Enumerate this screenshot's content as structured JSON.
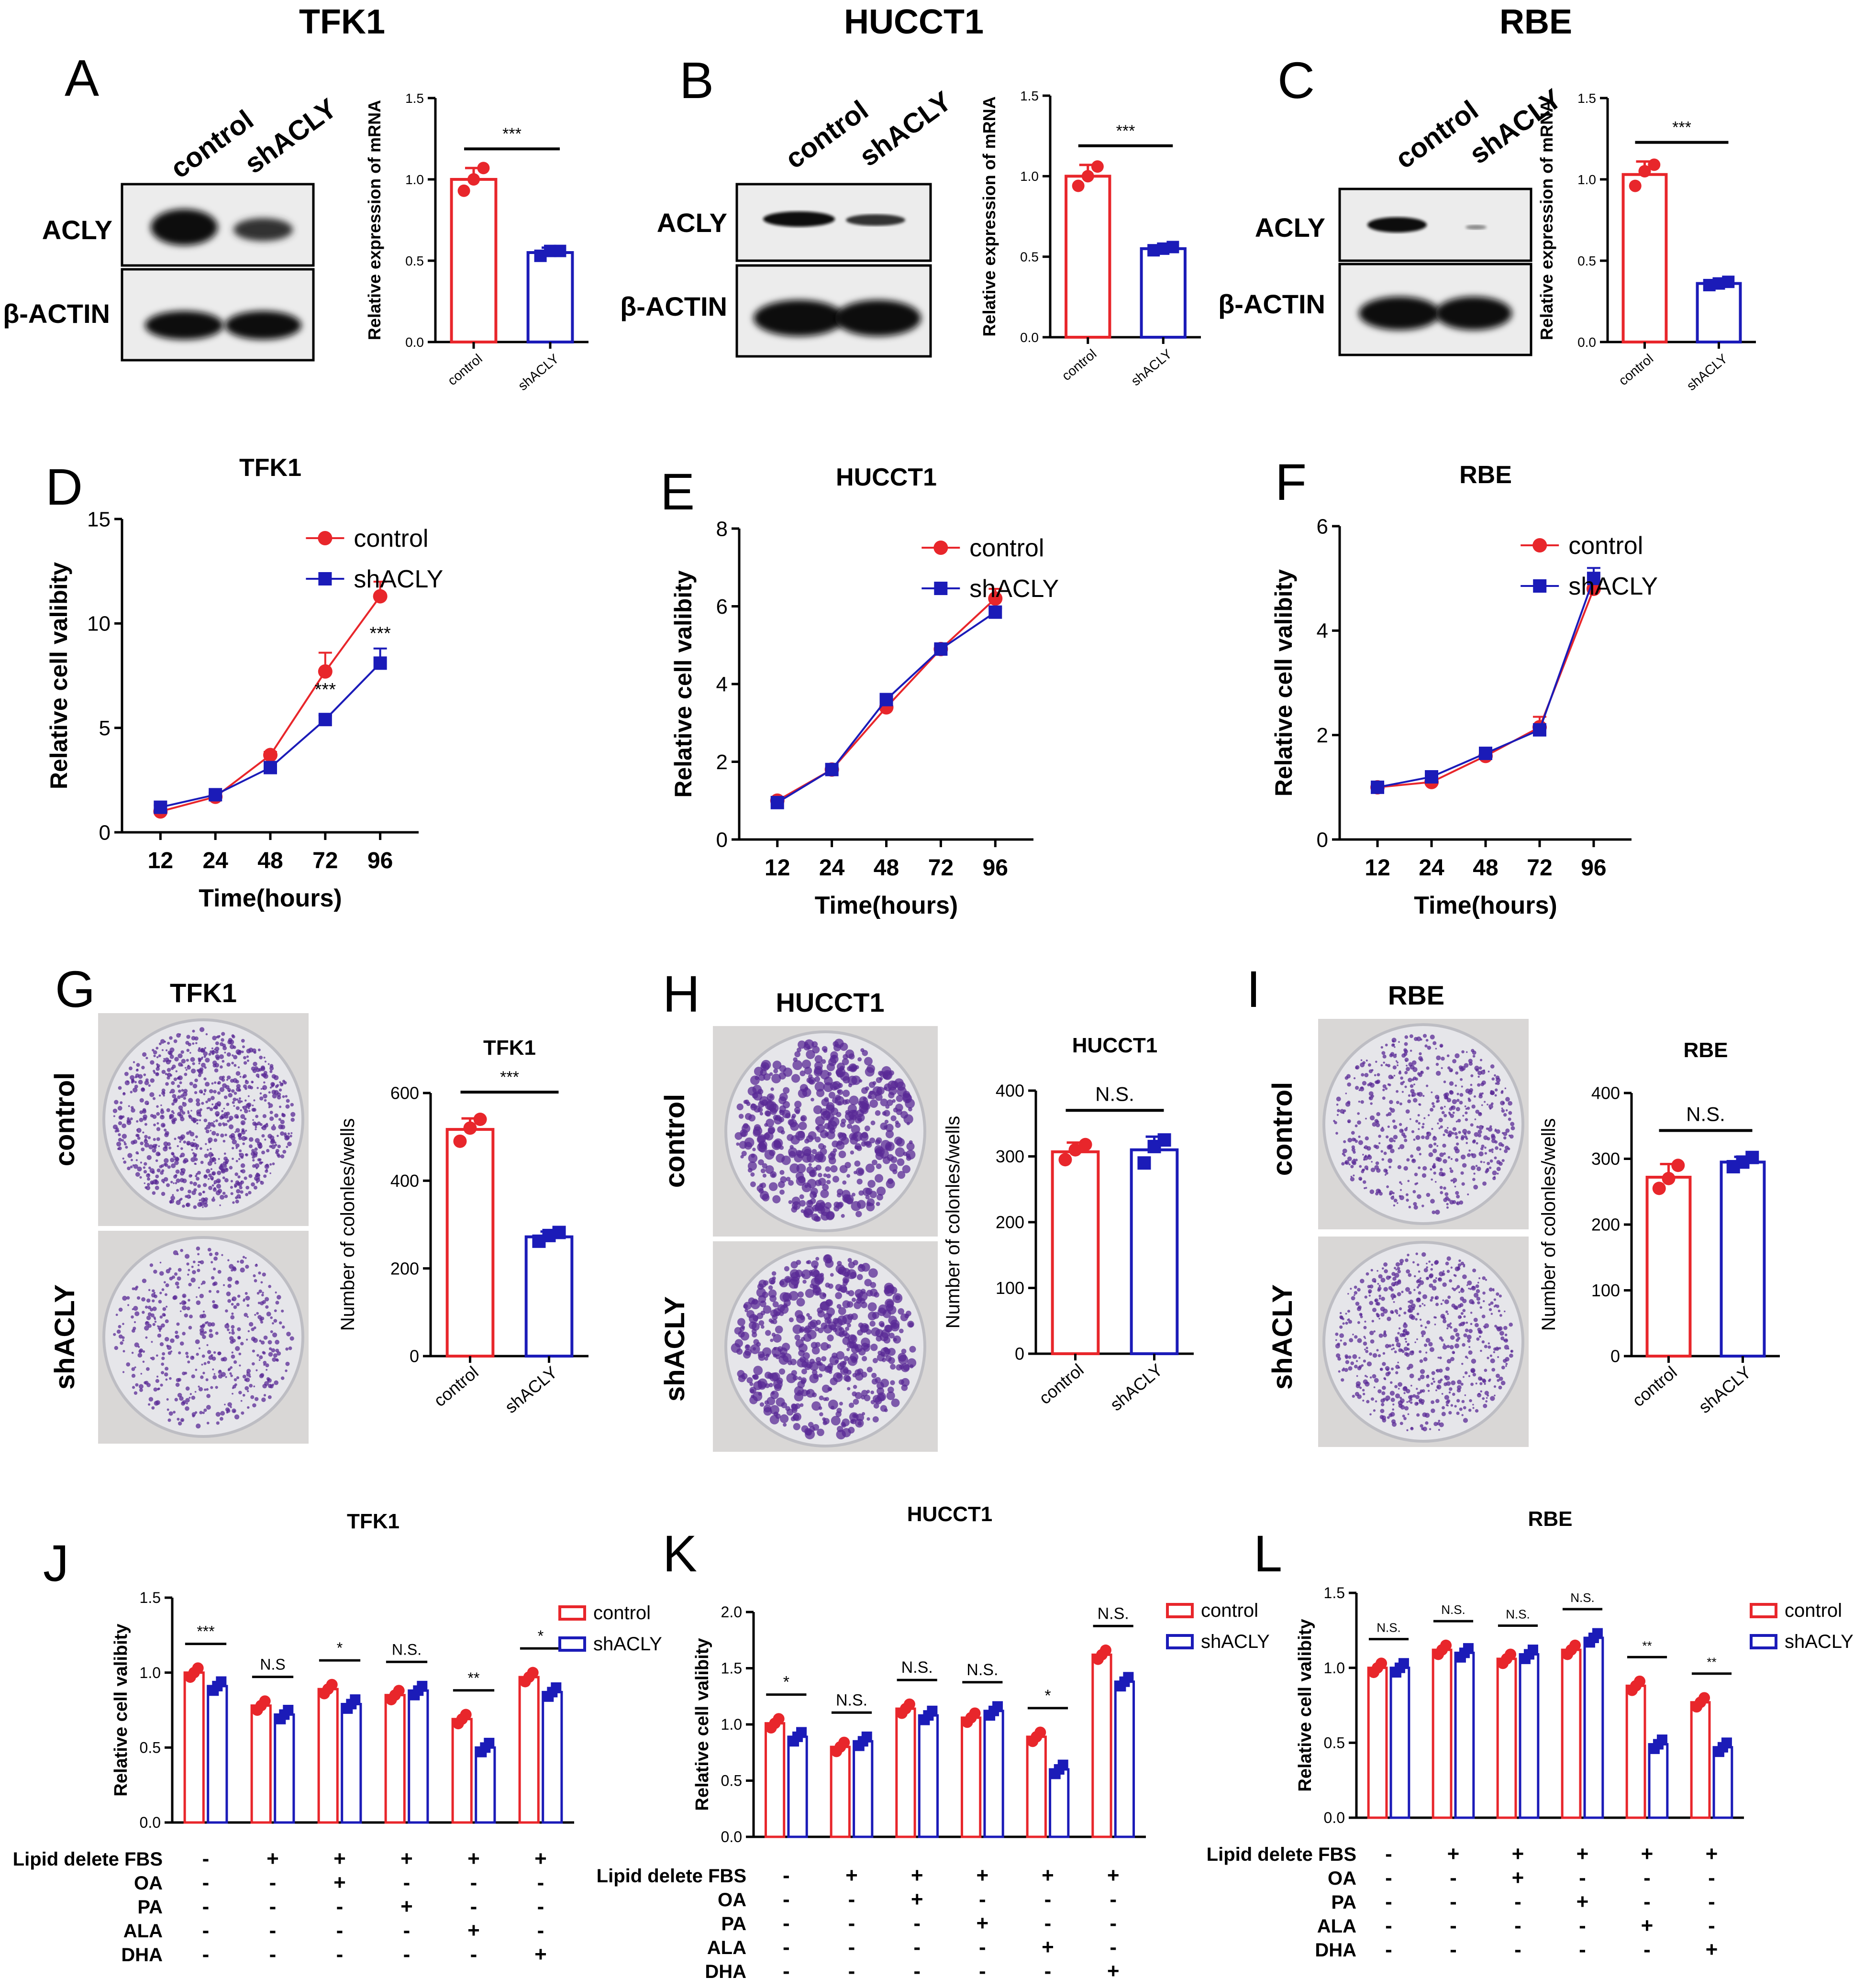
{
  "colors": {
    "control": "#e8262b",
    "shACLY": "#1b1bb8",
    "gel_bg": "#ececec",
    "plate_bg": "#e6e6ea",
    "colony": "#5a2a96"
  },
  "cell_lines": {
    "a": "TFK1",
    "b": "HUCCT1",
    "c": "RBE"
  },
  "panels": {
    "A": "A",
    "B": "B",
    "C": "C",
    "D": "D",
    "E": "E",
    "F": "F",
    "G": "G",
    "H": "H",
    "I": "I",
    "J": "J",
    "K": "K",
    "L": "L"
  },
  "western": {
    "lane_labels": [
      "control",
      "shACLY"
    ],
    "band_labels": [
      "ACLY",
      "β-ACTIN"
    ]
  },
  "colony_photos": {
    "row_labels": [
      "control",
      "shACLY"
    ]
  },
  "treatments": {
    "row_labels": [
      "Lipid delete FBS",
      "OA",
      "PA",
      "ALA",
      "DHA"
    ],
    "rows": [
      [
        "-",
        "+",
        "+",
        "+",
        "+",
        "+"
      ],
      [
        "-",
        "-",
        "+",
        "-",
        "-",
        "-"
      ],
      [
        "-",
        "-",
        "-",
        "+",
        "-",
        "-"
      ],
      [
        "-",
        "-",
        "-",
        "-",
        "+",
        "-"
      ],
      [
        "-",
        "-",
        "-",
        "-",
        "-",
        "+"
      ]
    ]
  },
  "chart_data": [
    {
      "id": "A_bar",
      "type": "bar",
      "title": "",
      "ylabel": "Relative expression of mRNA",
      "categories": [
        "control",
        "shACLY"
      ],
      "values": [
        1.0,
        0.55
      ],
      "errors": [
        0.07,
        0.03
      ],
      "ylim": [
        0,
        1.5
      ],
      "yticks": [
        "0.0",
        "0.5",
        "1.0",
        "1.5"
      ],
      "significance": [
        "***"
      ],
      "points": [
        [
          0.93,
          1.0,
          1.07
        ],
        [
          0.53,
          0.56,
          0.56
        ]
      ]
    },
    {
      "id": "B_bar",
      "type": "bar",
      "title": "",
      "ylabel": "Relative expression of mRNA",
      "categories": [
        "control",
        "shACLY"
      ],
      "values": [
        1.0,
        0.55
      ],
      "errors": [
        0.07,
        0.02
      ],
      "ylim": [
        0,
        1.5
      ],
      "yticks": [
        "0.0",
        "0.5",
        "1.0",
        "1.5"
      ],
      "significance": [
        "***"
      ],
      "points": [
        [
          0.94,
          1.0,
          1.06
        ],
        [
          0.54,
          0.55,
          0.56
        ]
      ]
    },
    {
      "id": "C_bar",
      "type": "bar",
      "title": "",
      "ylabel": "Relative expression of mRNA",
      "categories": [
        "control",
        "shACLY"
      ],
      "values": [
        1.03,
        0.36
      ],
      "errors": [
        0.08,
        0.01
      ],
      "ylim": [
        0,
        1.5
      ],
      "yticks": [
        "0.0",
        "0.5",
        "1.0",
        "1.5"
      ],
      "significance": [
        "***"
      ],
      "points": [
        [
          0.96,
          1.05,
          1.09
        ],
        [
          0.35,
          0.36,
          0.37
        ]
      ]
    },
    {
      "id": "D_line",
      "type": "line",
      "title": "TFK1",
      "xlabel": "Time(hours)",
      "ylabel": "Relative cell valibity",
      "categories": [
        "12",
        "24",
        "48",
        "72",
        "96"
      ],
      "ylim": [
        0,
        15
      ],
      "yticks": [
        "0",
        "5",
        "10",
        "15"
      ],
      "series": [
        {
          "name": "control",
          "values": [
            1.0,
            1.7,
            3.7,
            7.7,
            11.3
          ],
          "errors": [
            0.1,
            0.1,
            0.15,
            0.9,
            0.7
          ]
        },
        {
          "name": "shACLY",
          "values": [
            1.2,
            1.8,
            3.1,
            5.4,
            8.1
          ],
          "errors": [
            0.1,
            0.1,
            0.15,
            0.2,
            0.7
          ]
        }
      ],
      "annotations": [
        {
          "x": "72",
          "text": "***"
        },
        {
          "x": "96",
          "text": "***"
        }
      ]
    },
    {
      "id": "E_line",
      "type": "line",
      "title": "HUCCT1",
      "xlabel": "Time(hours)",
      "ylabel": "Relative cell valibity",
      "categories": [
        "12",
        "24",
        "48",
        "72",
        "96"
      ],
      "ylim": [
        0,
        8
      ],
      "yticks": [
        "0",
        "2",
        "4",
        "6",
        "8"
      ],
      "series": [
        {
          "name": "control",
          "values": [
            1.0,
            1.8,
            3.4,
            4.9,
            6.2
          ],
          "errors": [
            0.05,
            0.05,
            0.1,
            0.1,
            0.25
          ]
        },
        {
          "name": "shACLY",
          "values": [
            0.95,
            1.8,
            3.6,
            4.9,
            5.85
          ],
          "errors": [
            0.05,
            0.05,
            0.1,
            0.1,
            0.1
          ]
        }
      ],
      "annotations": []
    },
    {
      "id": "F_line",
      "type": "line",
      "title": "RBE",
      "xlabel": "Time(hours)",
      "ylabel": "Relative cell valibity",
      "categories": [
        "12",
        "24",
        "48",
        "72",
        "96"
      ],
      "ylim": [
        0,
        6
      ],
      "yticks": [
        "0",
        "2",
        "4",
        "6"
      ],
      "series": [
        {
          "name": "control",
          "values": [
            1.0,
            1.1,
            1.6,
            2.15,
            4.8
          ],
          "errors": [
            0.05,
            0.05,
            0.05,
            0.2,
            0.15
          ]
        },
        {
          "name": "shACLY",
          "values": [
            1.0,
            1.2,
            1.65,
            2.1,
            5.0
          ],
          "errors": [
            0.05,
            0.05,
            0.05,
            0.1,
            0.2
          ]
        }
      ],
      "annotations": []
    },
    {
      "id": "G_bar",
      "type": "bar",
      "title": "TFK1",
      "ylabel": "Number of colonles/wells",
      "categories": [
        "control",
        "shACLY"
      ],
      "values": [
        517,
        272
      ],
      "errors": [
        25,
        12
      ],
      "ylim": [
        0,
        600
      ],
      "yticks": [
        "0",
        "200",
        "400",
        "600"
      ],
      "significance": [
        "***"
      ],
      "points": [
        [
          490,
          520,
          540
        ],
        [
          262,
          275,
          282
        ]
      ]
    },
    {
      "id": "H_bar",
      "type": "bar",
      "title": "HUCCT1",
      "ylabel": "Number of colonles/wells",
      "categories": [
        "control",
        "shACLY"
      ],
      "values": [
        307,
        310
      ],
      "errors": [
        14,
        20
      ],
      "ylim": [
        0,
        400
      ],
      "yticks": [
        "0",
        "100",
        "200",
        "300",
        "400"
      ],
      "significance": [
        "N.S."
      ],
      "points": [
        [
          295,
          310,
          318
        ],
        [
          290,
          315,
          325
        ]
      ]
    },
    {
      "id": "I_bar",
      "type": "bar",
      "title": "RBE",
      "ylabel": "Number of colonles/wells",
      "categories": [
        "control",
        "shACLY"
      ],
      "values": [
        272,
        295
      ],
      "errors": [
        20,
        8
      ],
      "ylim": [
        0,
        400
      ],
      "yticks": [
        "0",
        "100",
        "200",
        "300",
        "400"
      ],
      "significance": [
        "N.S."
      ],
      "points": [
        [
          255,
          270,
          290
        ],
        [
          288,
          295,
          302
        ]
      ]
    },
    {
      "id": "J_grouped",
      "type": "bar",
      "title": "TFK1",
      "ylabel": "Relative cell valibity",
      "ylim": [
        0,
        1.5
      ],
      "yticks": [
        "0.0",
        "0.5",
        "1.0",
        "1.5"
      ],
      "legend": [
        "control",
        "shACLY"
      ],
      "series": [
        {
          "name": "control",
          "values": [
            1.0,
            0.78,
            0.89,
            0.85,
            0.69,
            0.97
          ]
        },
        {
          "name": "shACLY",
          "values": [
            0.91,
            0.72,
            0.79,
            0.88,
            0.5,
            0.87
          ]
        }
      ],
      "significance": [
        "***",
        "N.S",
        "*",
        "N.S.",
        "**",
        "*"
      ]
    },
    {
      "id": "K_grouped",
      "type": "bar",
      "title": "HUCCT1",
      "ylabel": "Relative cell valibity",
      "ylim": [
        0,
        2.0
      ],
      "yticks": [
        "0.0",
        "0.5",
        "1.0",
        "1.5",
        "2.0"
      ],
      "legend": [
        "control",
        "shACLY"
      ],
      "series": [
        {
          "name": "control",
          "values": [
            1.01,
            0.8,
            1.14,
            1.06,
            0.89,
            1.62
          ]
        },
        {
          "name": "shACLY",
          "values": [
            0.89,
            0.85,
            1.08,
            1.12,
            0.6,
            1.38
          ]
        }
      ],
      "significance": [
        "*",
        "N.S.",
        "N.S.",
        "N.S.",
        "*",
        "N.S."
      ]
    },
    {
      "id": "L_grouped",
      "type": "bar",
      "title": "RBE",
      "ylabel": "Relative cell valibity",
      "ylim": [
        0,
        1.5
      ],
      "yticks": [
        "0.0",
        "0.5",
        "1.0",
        "1.5"
      ],
      "legend": [
        "control",
        "shACLY"
      ],
      "series": [
        {
          "name": "control",
          "values": [
            1.0,
            1.12,
            1.06,
            1.12,
            0.88,
            0.77
          ]
        },
        {
          "name": "shACLY",
          "values": [
            1.0,
            1.1,
            1.09,
            1.2,
            0.49,
            0.47
          ]
        }
      ],
      "significance": [
        "N.S.",
        "N.S.",
        "N.S.",
        "N.S.",
        "**",
        "**"
      ]
    }
  ]
}
